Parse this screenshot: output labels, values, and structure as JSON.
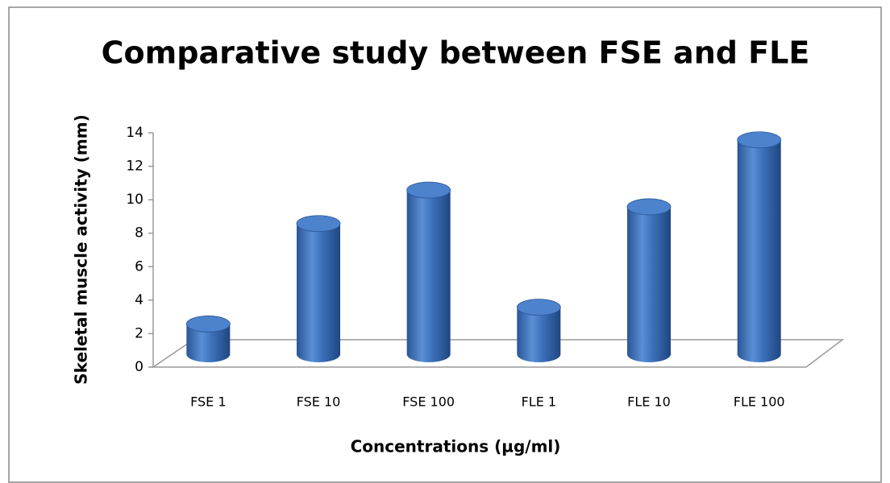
{
  "chart_data": {
    "type": "bar",
    "title": "Comparative study between FSE and FLE",
    "x_label": "Concentrations (µg/ml)",
    "y_label": "Skeletal muscle activity (mm)",
    "categories": [
      "FSE 1",
      "FSE  10",
      "FSE 100",
      "FLE 1",
      "FLE  10",
      "FLE 100"
    ],
    "values": [
      2,
      8,
      10,
      3,
      9,
      13
    ],
    "color": "#3a6fb8",
    "ylim": [
      0,
      14
    ],
    "yticks": [
      0,
      2,
      4,
      6,
      8,
      10,
      12,
      14
    ]
  }
}
